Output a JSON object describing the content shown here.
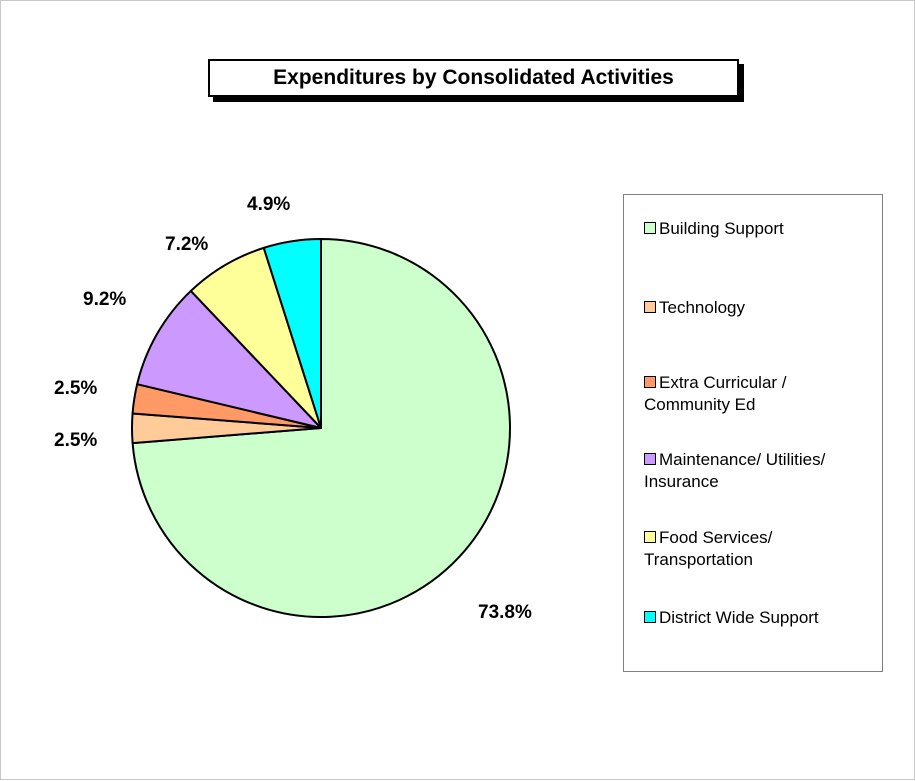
{
  "chart_data": {
    "type": "pie",
    "title": "Expenditures by Consolidated Activities",
    "categories": [
      "Building Support",
      "Technology",
      "Extra Curricular / Community Ed",
      "Maintenance/ Utilities/ Insurance",
      "Food Services/ Transportation",
      "District Wide Support"
    ],
    "values": [
      73.8,
      2.5,
      2.5,
      9.2,
      7.2,
      4.9
    ],
    "value_labels": [
      "73.8%",
      "2.5%",
      "2.5%",
      "9.2%",
      "7.2%",
      "4.9%"
    ],
    "colors": [
      "#CCFFCC",
      "#FFCC99",
      "#FF9966",
      "#CC99FF",
      "#FFFF99",
      "#00FFFF"
    ],
    "legend": {
      "placement": "right",
      "entries": [
        [
          "Building Support"
        ],
        [
          "Technology"
        ],
        [
          "Extra Curricular /",
          "Community Ed"
        ],
        [
          "Maintenance/ Utilities/",
          "Insurance"
        ],
        [
          "Food Services/",
          "Transportation"
        ],
        [
          "District Wide Support"
        ]
      ]
    },
    "start_angle": "12 o'clock",
    "direction": "clockwise"
  }
}
